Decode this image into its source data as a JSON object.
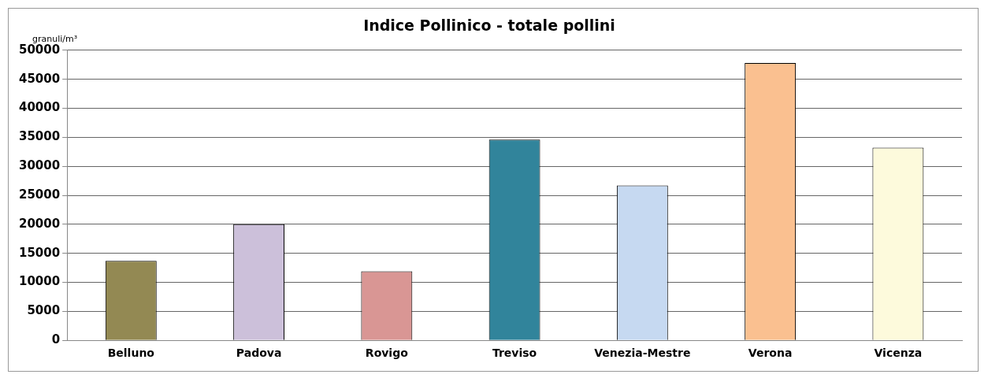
{
  "chart_data": {
    "type": "bar",
    "title": "Indice Pollinico - totale pollini",
    "ylabel": "granuli/m³",
    "categories": [
      "Belluno",
      "Padova",
      "Rovigo",
      "Treviso",
      "Venezia-Mestre",
      "Verona",
      "Vicenza"
    ],
    "values": [
      13700,
      20000,
      11900,
      34600,
      26700,
      47800,
      33200
    ],
    "colors": [
      "#938953",
      "#ccc0da",
      "#d99694",
      "#31849b",
      "#c6d9f1",
      "#fac090",
      "#fdfadc"
    ],
    "ylim": [
      0,
      50000
    ],
    "yticks": [
      0,
      5000,
      10000,
      15000,
      20000,
      25000,
      30000,
      35000,
      40000,
      45000,
      50000
    ],
    "grid": "y",
    "legend": false
  }
}
